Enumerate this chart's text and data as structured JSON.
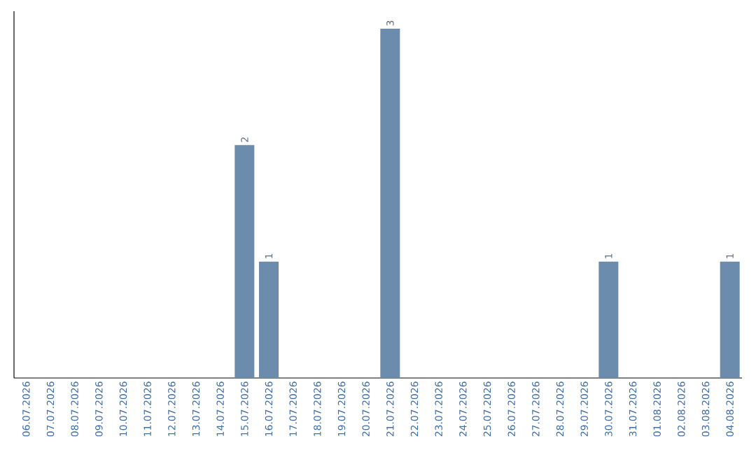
{
  "chart_data": {
    "type": "bar",
    "color": "#6b8cac",
    "categories": [
      "06.07.2026",
      "07.07.2026",
      "08.07.2026",
      "09.07.2026",
      "10.07.2026",
      "11.07.2026",
      "12.07.2026",
      "13.07.2026",
      "14.07.2026",
      "15.07.2026",
      "16.07.2026",
      "17.07.2026",
      "18.07.2026",
      "19.07.2026",
      "20.07.2026",
      "21.07.2026",
      "22.07.2026",
      "23.07.2026",
      "24.07.2026",
      "25.07.2026",
      "26.07.2026",
      "27.07.2026",
      "28.07.2026",
      "29.07.2026",
      "30.07.2026",
      "31.07.2026",
      "01.08.2026",
      "02.08.2026",
      "03.08.2026",
      "04.08.2026"
    ],
    "values": [
      0,
      0,
      0,
      0,
      0,
      0,
      0,
      0,
      0,
      2,
      1,
      0,
      0,
      0,
      0,
      3,
      0,
      0,
      0,
      0,
      0,
      0,
      0,
      0,
      1,
      0,
      0,
      0,
      0,
      1
    ],
    "value_labels": [
      null,
      null,
      null,
      null,
      null,
      null,
      null,
      null,
      null,
      "2",
      "1",
      null,
      null,
      null,
      null,
      "3",
      null,
      null,
      null,
      null,
      null,
      null,
      null,
      null,
      "1",
      null,
      null,
      null,
      null,
      "1"
    ],
    "tick_labels": "x"
  }
}
